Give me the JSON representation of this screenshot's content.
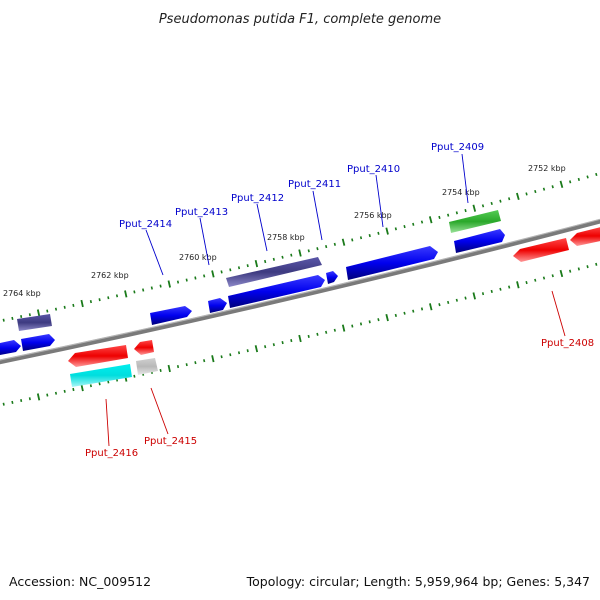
{
  "title": "Pseudomonas putida F1, complete genome",
  "footer": {
    "accession": "Accession: NC_009512",
    "summary": "Topology: circular; Length: 5,959,964 bp; Genes: 5,347"
  },
  "scale_labels": [
    "2752 kbp",
    "2754 kbp",
    "2756 kbp",
    "2758 kbp",
    "2760 kbp",
    "2762 kbp",
    "2764 kbp"
  ],
  "gene_labels": [
    {
      "id": "Pput_2409",
      "color": "#0000cc"
    },
    {
      "id": "Pput_2410",
      "color": "#0000cc"
    },
    {
      "id": "Pput_2411",
      "color": "#0000cc"
    },
    {
      "id": "Pput_2412",
      "color": "#0000cc"
    },
    {
      "id": "Pput_2413",
      "color": "#0000cc"
    },
    {
      "id": "Pput_2414",
      "color": "#0000cc"
    },
    {
      "id": "Pput_2408",
      "color": "#cc0000"
    },
    {
      "id": "Pput_2415",
      "color": "#cc0000"
    },
    {
      "id": "Pput_2416",
      "color": "#cc0000"
    }
  ],
  "colors": {
    "backbone": "#808080",
    "forward_cds": "#0000ee",
    "reverse_cds": "#ee0000",
    "dark_feature": "#3d3a80",
    "green_feature": "#33bb33",
    "cyan_feature": "#00e0e0",
    "grey_feature": "#bbbbbb",
    "tick": "#1a7a1a"
  }
}
